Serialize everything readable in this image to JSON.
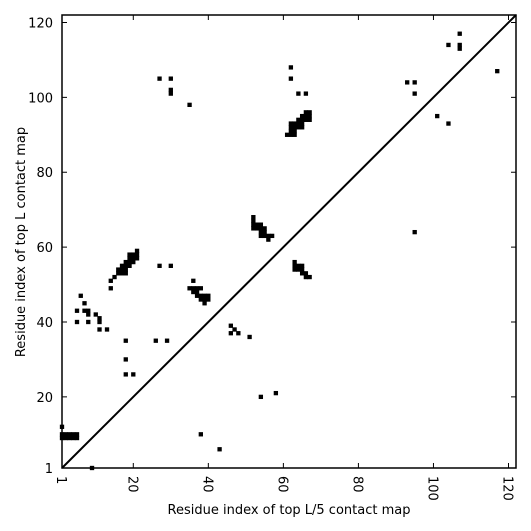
{
  "chart_data": {
    "type": "scatter",
    "title": "",
    "xlabel": "Residue index of top L/5 contact map",
    "ylabel": "Residue index of top L contact map",
    "xlim": [
      1,
      122
    ],
    "ylim": [
      1,
      122
    ],
    "x_ticks": [
      1,
      20,
      40,
      60,
      80,
      100,
      120
    ],
    "y_ticks": [
      1,
      20,
      40,
      60,
      80,
      100,
      120
    ],
    "x_tick_labels": [
      "1",
      "20",
      "40",
      "60",
      "80",
      "100",
      "120"
    ],
    "y_tick_labels": [
      "1",
      "20",
      "40",
      "60",
      "80",
      "100",
      "120"
    ],
    "x_tick_rotation": 90,
    "grid": false,
    "marker_color": "#000000",
    "diagonal_line": {
      "from": [
        1,
        1
      ],
      "to": [
        122,
        122
      ],
      "color": "#000000"
    },
    "upper_triangle_points": [
      [
        27,
        105
      ],
      [
        30,
        105
      ],
      [
        30,
        102
      ],
      [
        30,
        101
      ],
      [
        35,
        98
      ],
      [
        62,
        108
      ],
      [
        62,
        105
      ],
      [
        64,
        101
      ],
      [
        66,
        101
      ],
      [
        93,
        104
      ],
      [
        95,
        104
      ],
      [
        95,
        101
      ],
      [
        104,
        114
      ],
      [
        107,
        117
      ],
      [
        107,
        114
      ],
      [
        107,
        113
      ],
      [
        101,
        95
      ],
      [
        104,
        93
      ],
      [
        117,
        107
      ],
      [
        61,
        90
      ],
      [
        62,
        90
      ],
      [
        63,
        90
      ],
      [
        62,
        91
      ],
      [
        63,
        91
      ],
      [
        62,
        92
      ],
      [
        63,
        92
      ],
      [
        64,
        92
      ],
      [
        62,
        93
      ],
      [
        63,
        93
      ],
      [
        64,
        93
      ],
      [
        64,
        94
      ],
      [
        65,
        94
      ],
      [
        66,
        94
      ],
      [
        65,
        95
      ],
      [
        66,
        95
      ],
      [
        67,
        95
      ],
      [
        66,
        96
      ],
      [
        67,
        96
      ],
      [
        67,
        94
      ],
      [
        65,
        93
      ],
      [
        65,
        92
      ]
    ],
    "lower_triangle_points": [
      [
        1,
        9
      ],
      [
        2,
        9
      ],
      [
        3,
        9
      ],
      [
        4,
        9
      ],
      [
        5,
        9
      ],
      [
        1,
        10
      ],
      [
        2,
        10
      ],
      [
        3,
        10
      ],
      [
        4,
        10
      ],
      [
        5,
        10
      ],
      [
        1,
        12
      ],
      [
        9,
        1
      ],
      [
        5,
        40
      ],
      [
        5,
        43
      ],
      [
        6,
        47
      ],
      [
        7,
        45
      ],
      [
        7,
        43
      ],
      [
        8,
        43
      ],
      [
        8,
        42
      ],
      [
        8,
        40
      ],
      [
        10,
        42
      ],
      [
        11,
        41
      ],
      [
        11,
        40
      ],
      [
        11,
        38
      ],
      [
        13,
        38
      ],
      [
        14,
        51
      ],
      [
        14,
        49
      ],
      [
        15,
        52
      ],
      [
        16,
        53
      ],
      [
        16,
        54
      ],
      [
        17,
        53
      ],
      [
        17,
        54
      ],
      [
        17,
        55
      ],
      [
        18,
        53
      ],
      [
        18,
        54
      ],
      [
        18,
        55
      ],
      [
        18,
        56
      ],
      [
        19,
        55
      ],
      [
        19,
        56
      ],
      [
        20,
        56
      ],
      [
        20,
        57
      ],
      [
        20,
        58
      ],
      [
        21,
        57
      ],
      [
        21,
        58
      ],
      [
        21,
        59
      ],
      [
        19,
        57
      ],
      [
        19,
        58
      ],
      [
        27,
        55
      ],
      [
        30,
        55
      ],
      [
        26,
        35
      ],
      [
        29,
        35
      ],
      [
        18,
        35
      ],
      [
        18,
        30
      ],
      [
        18,
        26
      ],
      [
        20,
        26
      ],
      [
        38,
        10
      ],
      [
        43,
        6
      ],
      [
        35,
        49
      ],
      [
        36,
        49
      ],
      [
        36,
        48
      ],
      [
        37,
        49
      ],
      [
        37,
        48
      ],
      [
        38,
        49
      ],
      [
        37,
        47
      ],
      [
        38,
        47
      ],
      [
        38,
        46
      ],
      [
        39,
        47
      ],
      [
        39,
        46
      ],
      [
        40,
        47
      ],
      [
        40,
        46
      ],
      [
        39,
        45
      ],
      [
        36,
        51
      ],
      [
        46,
        39
      ],
      [
        46,
        37
      ],
      [
        47,
        38
      ],
      [
        48,
        37
      ],
      [
        51,
        36
      ],
      [
        54,
        20
      ],
      [
        58,
        21
      ],
      [
        52,
        68
      ],
      [
        52,
        67
      ],
      [
        52,
        66
      ],
      [
        52,
        65
      ],
      [
        53,
        65
      ],
      [
        53,
        66
      ],
      [
        54,
        65
      ],
      [
        54,
        66
      ],
      [
        54,
        64
      ],
      [
        55,
        65
      ],
      [
        54,
        63
      ],
      [
        55,
        64
      ],
      [
        55,
        63
      ],
      [
        56,
        63
      ],
      [
        56,
        62
      ],
      [
        57,
        63
      ],
      [
        63,
        56
      ],
      [
        63,
        55
      ],
      [
        63,
        54
      ],
      [
        64,
        55
      ],
      [
        64,
        54
      ],
      [
        65,
        55
      ],
      [
        65,
        54
      ],
      [
        65,
        53
      ],
      [
        66,
        53
      ],
      [
        66,
        52
      ],
      [
        67,
        52
      ],
      [
        95,
        64
      ]
    ]
  }
}
